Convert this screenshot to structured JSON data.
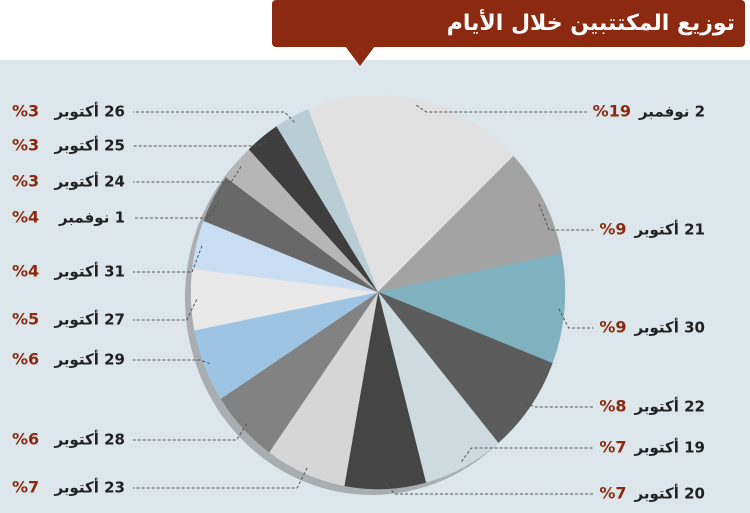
{
  "chart_data": {
    "type": "pie",
    "title": "توزيع المكتتبين خلال الأيام",
    "categories": [
      "2 نوفمبر",
      "21 أكتوبر",
      "30 أكتوبر",
      "22 أكتوبر",
      "19 أكتوبر",
      "20 أكتوبر",
      "23 أكتوبر",
      "28 أكتوبر",
      "29 أكتوبر",
      "27 أكتوبر",
      "31 أكتوبر",
      "1 نوفمبر",
      "24 أكتوبر",
      "25 أكتوبر",
      "26 أكتوبر"
    ],
    "values": [
      19,
      9,
      9,
      8,
      7,
      7,
      7,
      6,
      6,
      5,
      4,
      4,
      3,
      3,
      3
    ],
    "value_labels": [
      "%19",
      "%9",
      "%9",
      "%8",
      "%7",
      "%7",
      "%7",
      "%6",
      "%6",
      "%5",
      "%4",
      "%4",
      "%3",
      "%3",
      "%3"
    ],
    "colors": [
      "#e1e1e1",
      "#a3a3a3",
      "#7fb1bf",
      "#5c5c5c",
      "#cddade",
      "#454545",
      "#d6d6d6",
      "#828282",
      "#9dc4e2",
      "#e9e9e9",
      "#c9ddf3",
      "#686868",
      "#b6b6b6",
      "#3e3e3e",
      "#b8cdd6"
    ]
  }
}
